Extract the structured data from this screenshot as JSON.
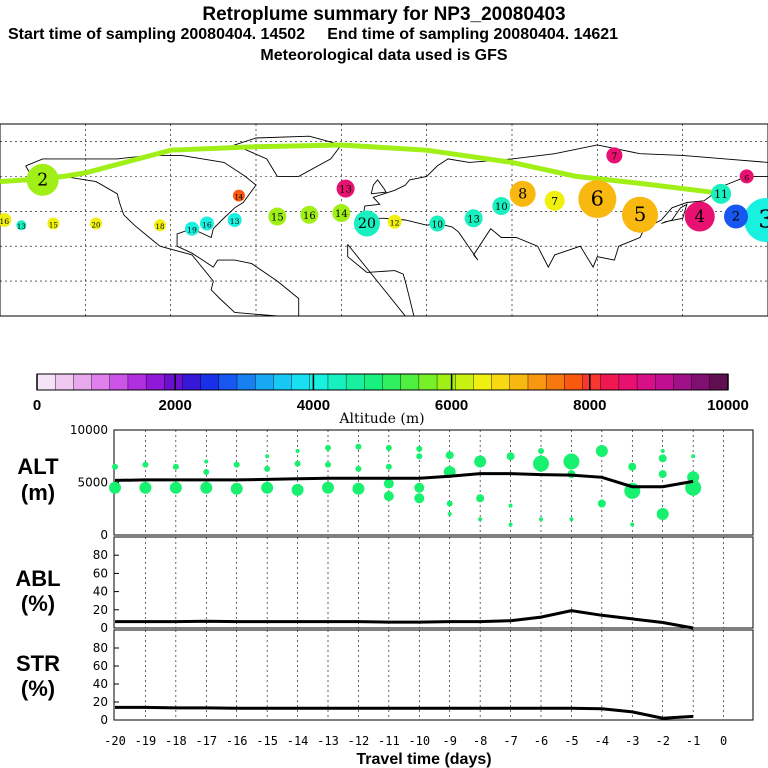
{
  "title": "Retroplume summary for NP3_20080403",
  "subtitle_line": "Start time of sampling 20080404. 14502     End time of sampling 20080404. 14621",
  "met_line": "Meteorological data used is GFS",
  "colorbar": {
    "label": "Altitude (m)",
    "ticks": [
      "0",
      "2000",
      "4000",
      "6000",
      "8000",
      "10000"
    ],
    "colors": [
      "#f7e3f7",
      "#f0c8f0",
      "#e8a8ec",
      "#e080ec",
      "#cc55e8",
      "#b030e0",
      "#9018d8",
      "#6c10d0",
      "#3818d8",
      "#1830e8",
      "#1858f0",
      "#1880f0",
      "#18a8f4",
      "#18c8f4",
      "#18e0f0",
      "#18f0e0",
      "#18f0c0",
      "#18f0a0",
      "#18f080",
      "#30f060",
      "#50f040",
      "#78f028",
      "#a0f018",
      "#c8f010",
      "#f0f010",
      "#f8d810",
      "#f8b810",
      "#f89810",
      "#f87810",
      "#f85810",
      "#f83830",
      "#f01850",
      "#e81070",
      "#d81088",
      "#c01090",
      "#a01088",
      "#801070",
      "#601050"
    ]
  },
  "map": {
    "trajectory_points": [
      {
        "label": "2",
        "lon": -160,
        "lat": 58,
        "color": "#a0f018",
        "size": 16
      },
      {
        "label": "16",
        "lon": -178,
        "lat": 35,
        "color": "#f0f010",
        "size": 7
      },
      {
        "label": "13",
        "lon": -170,
        "lat": 32,
        "color": "#18f0c0",
        "size": 5
      },
      {
        "label": "15",
        "lon": -155,
        "lat": 33,
        "color": "#f0f010",
        "size": 6
      },
      {
        "label": "20",
        "lon": -135,
        "lat": 33,
        "color": "#f0f010",
        "size": 6
      },
      {
        "label": "18",
        "lon": -105,
        "lat": 32,
        "color": "#f0f010",
        "size": 6
      },
      {
        "label": "19",
        "lon": -90,
        "lat": 30,
        "color": "#18f0e0",
        "size": 7
      },
      {
        "label": "16",
        "lon": -83,
        "lat": 33,
        "color": "#18f0e0",
        "size": 7
      },
      {
        "label": "13",
        "lon": -70,
        "lat": 35,
        "color": "#18f0e0",
        "size": 7
      },
      {
        "label": "14",
        "lon": -68,
        "lat": 49,
        "color": "#f85810",
        "size": 6
      },
      {
        "label": "15",
        "lon": -50,
        "lat": 37,
        "color": "#a0f018",
        "size": 9
      },
      {
        "label": "16",
        "lon": -35,
        "lat": 38,
        "color": "#a0f018",
        "size": 9
      },
      {
        "label": "14",
        "lon": -20,
        "lat": 39,
        "color": "#a0f018",
        "size": 9
      },
      {
        "label": "13",
        "lon": -18,
        "lat": 53,
        "color": "#e81070",
        "size": 9
      },
      {
        "label": "20",
        "lon": -8,
        "lat": 33,
        "color": "#18f0c0",
        "size": 13
      },
      {
        "label": "12",
        "lon": 5,
        "lat": 34,
        "color": "#f0f010",
        "size": 7
      },
      {
        "label": "10",
        "lon": 25,
        "lat": 33,
        "color": "#18f0c0",
        "size": 8
      },
      {
        "label": "13",
        "lon": 42,
        "lat": 36,
        "color": "#18f0c0",
        "size": 9
      },
      {
        "label": "10",
        "lon": 55,
        "lat": 43,
        "color": "#18f0c0",
        "size": 9
      },
      {
        "label": "8",
        "lon": 65,
        "lat": 50,
        "color": "#f8b810",
        "size": 13
      },
      {
        "label": "7",
        "lon": 80,
        "lat": 46,
        "color": "#f0f010",
        "size": 10
      },
      {
        "label": "6",
        "lon": 100,
        "lat": 47,
        "color": "#f8b810",
        "size": 19
      },
      {
        "label": "5",
        "lon": 120,
        "lat": 38,
        "color": "#f8b810",
        "size": 18
      },
      {
        "label": "7",
        "lon": 108,
        "lat": 72,
        "color": "#e81070",
        "size": 8
      },
      {
        "label": "4",
        "lon": 148,
        "lat": 37,
        "color": "#e81070",
        "size": 15
      },
      {
        "label": "3",
        "lon": 195,
        "lat": 35,
        "color": "#18f0e0",
        "size": 22
      },
      {
        "label": "2",
        "lon": 165,
        "lat": 37,
        "color": "#1858f0",
        "size": 12
      },
      {
        "label": "11",
        "lon": 158,
        "lat": 50,
        "color": "#18f0c0",
        "size": 10
      },
      {
        "label": "6",
        "lon": 170,
        "lat": 60,
        "color": "#e81070",
        "size": 7
      }
    ]
  },
  "chart_data": [
    {
      "type": "line",
      "name": "ALT",
      "ylabel_line1": "ALT",
      "ylabel_line2": "(m)",
      "x": [
        -20,
        -19,
        -18,
        -17,
        -16,
        -15,
        -14,
        -13,
        -12,
        -11,
        -10,
        -9,
        -8,
        -7,
        -6,
        -5,
        -4,
        -3,
        -2,
        -1
      ],
      "y": [
        5200,
        5250,
        5250,
        5250,
        5250,
        5300,
        5350,
        5400,
        5400,
        5400,
        5400,
        5600,
        5850,
        5850,
        5750,
        5700,
        5500,
        4600,
        4600,
        5100
      ],
      "ylim": [
        0,
        10000
      ],
      "yticks": [
        "0",
        "5000",
        "10000"
      ],
      "scatter": [
        {
          "x": -20,
          "y": 6500,
          "r": 3
        },
        {
          "x": -20,
          "y": 4500,
          "r": 6
        },
        {
          "x": -19,
          "y": 6700,
          "r": 3
        },
        {
          "x": -19,
          "y": 4500,
          "r": 6
        },
        {
          "x": -18,
          "y": 6500,
          "r": 3
        },
        {
          "x": -18,
          "y": 4500,
          "r": 6
        },
        {
          "x": -17,
          "y": 7000,
          "r": 2
        },
        {
          "x": -17,
          "y": 6000,
          "r": 3
        },
        {
          "x": -17,
          "y": 4500,
          "r": 6
        },
        {
          "x": -16,
          "y": 6700,
          "r": 3
        },
        {
          "x": -16,
          "y": 4400,
          "r": 6
        },
        {
          "x": -15,
          "y": 7500,
          "r": 2
        },
        {
          "x": -15,
          "y": 6300,
          "r": 3
        },
        {
          "x": -15,
          "y": 4500,
          "r": 6
        },
        {
          "x": -14,
          "y": 8000,
          "r": 2
        },
        {
          "x": -14,
          "y": 6800,
          "r": 3
        },
        {
          "x": -14,
          "y": 4300,
          "r": 6
        },
        {
          "x": -13,
          "y": 8300,
          "r": 3
        },
        {
          "x": -13,
          "y": 6700,
          "r": 3
        },
        {
          "x": -13,
          "y": 4500,
          "r": 6
        },
        {
          "x": -12,
          "y": 8400,
          "r": 3
        },
        {
          "x": -12,
          "y": 6300,
          "r": 3
        },
        {
          "x": -12,
          "y": 4400,
          "r": 6
        },
        {
          "x": -11,
          "y": 8300,
          "r": 3
        },
        {
          "x": -11,
          "y": 6500,
          "r": 3
        },
        {
          "x": -11,
          "y": 3700,
          "r": 5
        },
        {
          "x": -11,
          "y": 4900,
          "r": 5
        },
        {
          "x": -10,
          "y": 8200,
          "r": 3
        },
        {
          "x": -10,
          "y": 7500,
          "r": 3
        },
        {
          "x": -10,
          "y": 3500,
          "r": 5
        },
        {
          "x": -10,
          "y": 4500,
          "r": 5
        },
        {
          "x": -9,
          "y": 7600,
          "r": 4
        },
        {
          "x": -9,
          "y": 6000,
          "r": 6
        },
        {
          "x": -9,
          "y": 3000,
          "r": 3
        },
        {
          "x": -9,
          "y": 2000,
          "r": 2
        },
        {
          "x": -8,
          "y": 7000,
          "r": 6
        },
        {
          "x": -8,
          "y": 3500,
          "r": 4
        },
        {
          "x": -8,
          "y": 1500,
          "r": 2
        },
        {
          "x": -7,
          "y": 7500,
          "r": 4
        },
        {
          "x": -7,
          "y": 2800,
          "r": 2
        },
        {
          "x": -7,
          "y": 1000,
          "r": 2
        },
        {
          "x": -6,
          "y": 6800,
          "r": 8
        },
        {
          "x": -6,
          "y": 8000,
          "r": 3
        },
        {
          "x": -6,
          "y": 1500,
          "r": 2
        },
        {
          "x": -5,
          "y": 7000,
          "r": 8
        },
        {
          "x": -5,
          "y": 5800,
          "r": 4
        },
        {
          "x": -5,
          "y": 1500,
          "r": 2
        },
        {
          "x": -4,
          "y": 8000,
          "r": 6
        },
        {
          "x": -4,
          "y": 3000,
          "r": 4
        },
        {
          "x": -3,
          "y": 6500,
          "r": 4
        },
        {
          "x": -3,
          "y": 4200,
          "r": 8
        },
        {
          "x": -3,
          "y": 1000,
          "r": 2
        },
        {
          "x": -2,
          "y": 7300,
          "r": 4
        },
        {
          "x": -2,
          "y": 5800,
          "r": 4
        },
        {
          "x": -2,
          "y": 2000,
          "r": 6
        },
        {
          "x": -2,
          "y": 8000,
          "r": 2
        },
        {
          "x": -1,
          "y": 5500,
          "r": 6
        },
        {
          "x": -1,
          "y": 4500,
          "r": 8
        },
        {
          "x": -1,
          "y": 7500,
          "r": 2
        }
      ]
    },
    {
      "type": "line",
      "name": "ABL",
      "ylabel_line1": "ABL",
      "ylabel_line2": "(%)",
      "x": [
        -20,
        -19,
        -18,
        -17,
        -16,
        -15,
        -14,
        -13,
        -12,
        -11,
        -10,
        -9,
        -8,
        -7,
        -6,
        -5,
        -4,
        -3,
        -2,
        -1
      ],
      "y": [
        7,
        7,
        7,
        7.5,
        7,
        7,
        7,
        7,
        7,
        6.5,
        6.5,
        7,
        7,
        8,
        12,
        19,
        14,
        10,
        6,
        0
      ],
      "ylim": [
        0,
        100
      ],
      "yticks": [
        "0",
        "20",
        "40",
        "60",
        "80"
      ]
    },
    {
      "type": "line",
      "name": "STR",
      "ylabel_line1": "STR",
      "ylabel_line2": "(%)",
      "x": [
        -20,
        -19,
        -18,
        -17,
        -16,
        -15,
        -14,
        -13,
        -12,
        -11,
        -10,
        -9,
        -8,
        -7,
        -6,
        -5,
        -4,
        -3,
        -2,
        -1
      ],
      "y": [
        14,
        14,
        13.5,
        13.5,
        13,
        13,
        13,
        13,
        13,
        13,
        13,
        13,
        13,
        13,
        13,
        13,
        12.5,
        9,
        2,
        4
      ],
      "ylim": [
        0,
        100
      ],
      "yticks": [
        "0",
        "20",
        "40",
        "60",
        "80"
      ],
      "xticks": [
        "-20",
        "-19",
        "-18",
        "-17",
        "-16",
        "-15",
        "-14",
        "-13",
        "-12",
        "-11",
        "-10",
        "-9",
        "-8",
        "-7",
        "-6",
        "-5",
        "-4",
        "-3",
        "-2",
        "-1",
        "0"
      ],
      "xlabel": "Travel time (days)"
    }
  ]
}
